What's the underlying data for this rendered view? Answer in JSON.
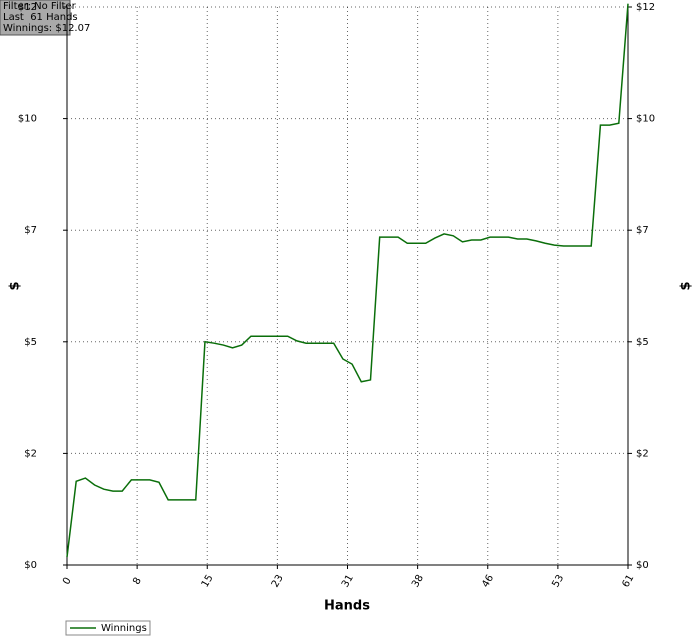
{
  "info": [
    "Filter: No Filter",
    "Last  61 Hands",
    "Winnings: $12.07"
  ],
  "chart_data": {
    "type": "line",
    "xlabel": "Hands",
    "ylabel": "$",
    "x": [
      0,
      1,
      2,
      3,
      4,
      5,
      6,
      7,
      8,
      9,
      10,
      11,
      12,
      13,
      14,
      15,
      16,
      17,
      18,
      19,
      20,
      21,
      22,
      23,
      24,
      25,
      26,
      27,
      28,
      29,
      30,
      31,
      32,
      33,
      34,
      35,
      36,
      37,
      38,
      39,
      40,
      41,
      42,
      43,
      44,
      45,
      46,
      47,
      48,
      49,
      50,
      51,
      52,
      53,
      54,
      55,
      56,
      57,
      58,
      59,
      60,
      61
    ],
    "series": [
      {
        "name": "Winnings",
        "color": "#0a6e0a",
        "values": [
          0.17,
          1.8,
          1.87,
          1.72,
          1.63,
          1.59,
          1.59,
          1.83,
          1.83,
          1.83,
          1.78,
          1.4,
          1.4,
          1.4,
          1.4,
          4.8,
          4.77,
          4.73,
          4.67,
          4.73,
          4.92,
          4.92,
          4.92,
          4.92,
          4.92,
          4.82,
          4.77,
          4.77,
          4.77,
          4.77,
          4.43,
          4.32,
          3.94,
          3.98,
          7.05,
          7.05,
          7.05,
          6.92,
          6.92,
          6.92,
          7.03,
          7.12,
          7.08,
          6.95,
          6.99,
          6.99,
          7.05,
          7.05,
          7.05,
          7.01,
          7.01,
          6.97,
          6.92,
          6.88,
          6.86,
          6.86,
          6.86,
          6.86,
          9.46,
          9.46,
          9.5,
          12.07
        ]
      }
    ],
    "xlim": [
      0,
      61
    ],
    "ylim": [
      0,
      12
    ],
    "xticks": [
      0,
      {
        "value": 7.625,
        "label": "8"
      },
      {
        "value": 15.25,
        "label": "15"
      },
      {
        "value": 22.875,
        "label": "23"
      },
      {
        "value": 30.5,
        "label": "31"
      },
      {
        "value": 38.125,
        "label": "38"
      },
      {
        "value": 45.75,
        "label": "46"
      },
      {
        "value": 53.375,
        "label": "53"
      },
      {
        "value": 61,
        "label": "61"
      }
    ],
    "yticks": [
      {
        "value": 0,
        "label": "$0"
      },
      {
        "value": 2.4,
        "label": "$2"
      },
      {
        "value": 4.8,
        "label": "$5"
      },
      {
        "value": 7.2,
        "label": "$7"
      },
      {
        "value": 9.6,
        "label": "$10"
      },
      {
        "value": 12,
        "label": "$12"
      }
    ],
    "grid": true
  }
}
